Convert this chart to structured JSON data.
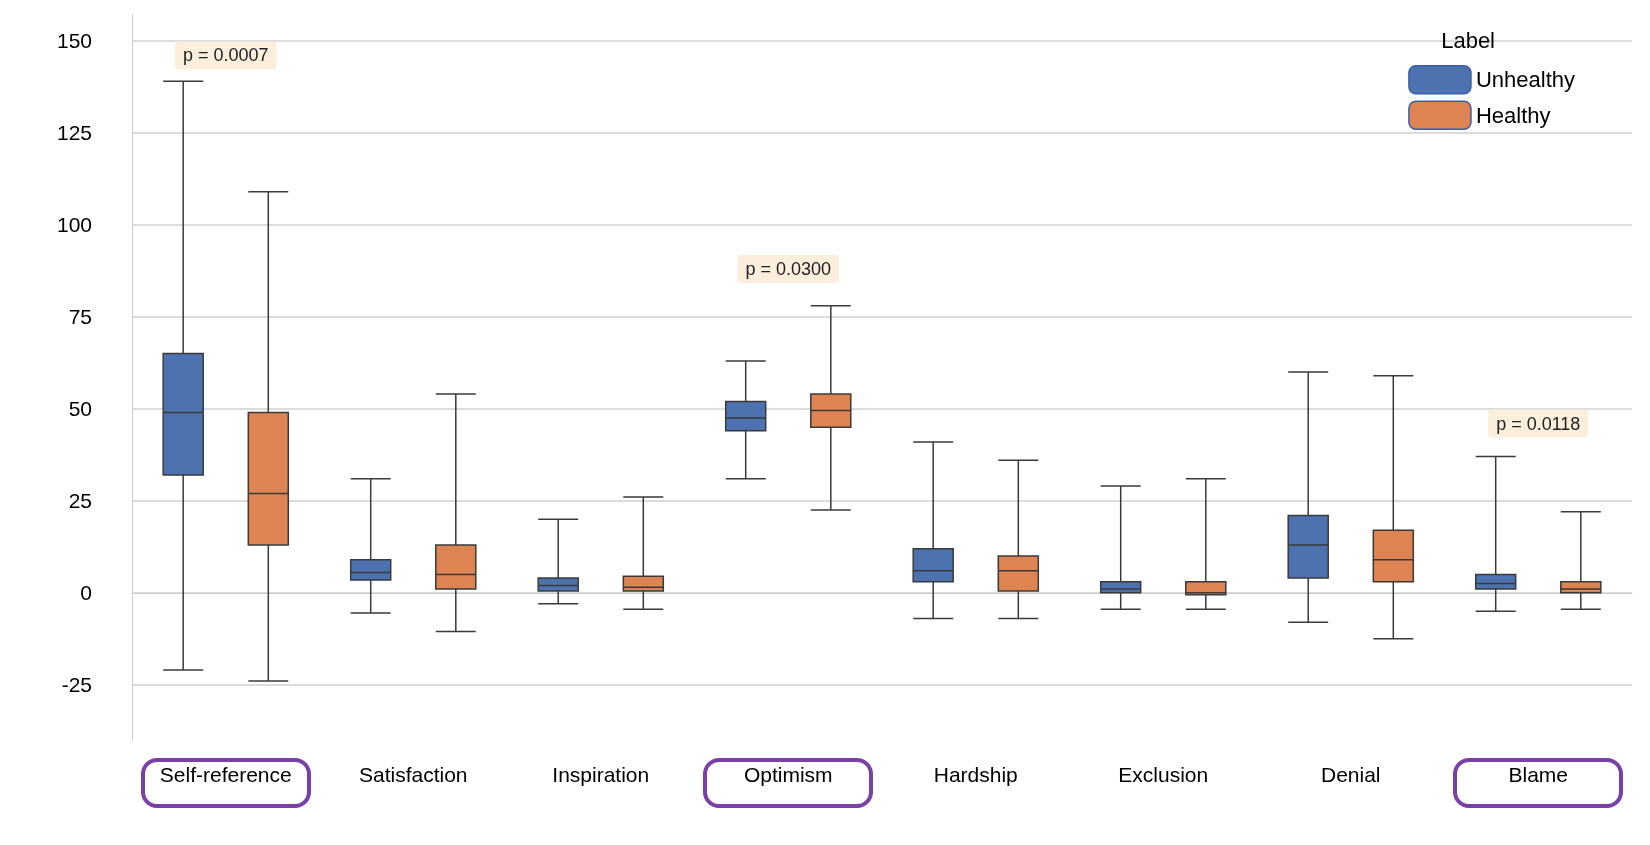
{
  "chart_data": {
    "type": "box",
    "categories": [
      "Self-reference",
      "Satisfaction",
      "Inspiration",
      "Optimism",
      "Hardship",
      "Exclusion",
      "Denial",
      "Blame"
    ],
    "series": [
      {
        "name": "Unhealthy",
        "color": "#4c72b0",
        "boxes": [
          {
            "low": -21,
            "q1": 32,
            "median": 49,
            "q3": 65,
            "high": 139
          },
          {
            "low": -5.5,
            "q1": 3.5,
            "median": 5.5,
            "q3": 9,
            "high": 31
          },
          {
            "low": -3,
            "q1": 0.5,
            "median": 2,
            "q3": 4,
            "high": 20
          },
          {
            "low": 31,
            "q1": 44,
            "median": 47.5,
            "q3": 52,
            "high": 63
          },
          {
            "low": -7,
            "q1": 3,
            "median": 6,
            "q3": 12,
            "high": 41
          },
          {
            "low": -4.5,
            "q1": 0,
            "median": 1,
            "q3": 3,
            "high": 29
          },
          {
            "low": -8,
            "q1": 4,
            "median": 13,
            "q3": 21,
            "high": 60
          },
          {
            "low": -5,
            "q1": 1,
            "median": 2.5,
            "q3": 5,
            "high": 37
          }
        ]
      },
      {
        "name": "Healthy",
        "color": "#dd8452",
        "boxes": [
          {
            "low": -24,
            "q1": 13,
            "median": 27,
            "q3": 49,
            "high": 109
          },
          {
            "low": -10.5,
            "q1": 1,
            "median": 5,
            "q3": 13,
            "high": 54
          },
          {
            "low": -4.5,
            "q1": 0.5,
            "median": 1.5,
            "q3": 4.5,
            "high": 26
          },
          {
            "low": 22.5,
            "q1": 45,
            "median": 49.5,
            "q3": 54,
            "high": 78
          },
          {
            "low": -7,
            "q1": 0.5,
            "median": 6,
            "q3": 10,
            "high": 36
          },
          {
            "low": -4.5,
            "q1": -0.5,
            "median": 0,
            "q3": 3,
            "high": 31
          },
          {
            "low": -12.5,
            "q1": 3,
            "median": 9,
            "q3": 17,
            "high": 59
          },
          {
            "low": -4.5,
            "q1": 0,
            "median": 1,
            "q3": 3,
            "high": 22
          }
        ]
      }
    ],
    "ylim": [
      -40,
      157
    ],
    "yticks": [
      -25,
      0,
      25,
      50,
      75,
      100,
      125,
      150
    ],
    "grid": "y",
    "legend": "top right",
    "legend_title": "Label",
    "annotations": [
      "p = 0.0007",
      "p = 0.0300",
      "p = 0.0118"
    ]
  }
}
